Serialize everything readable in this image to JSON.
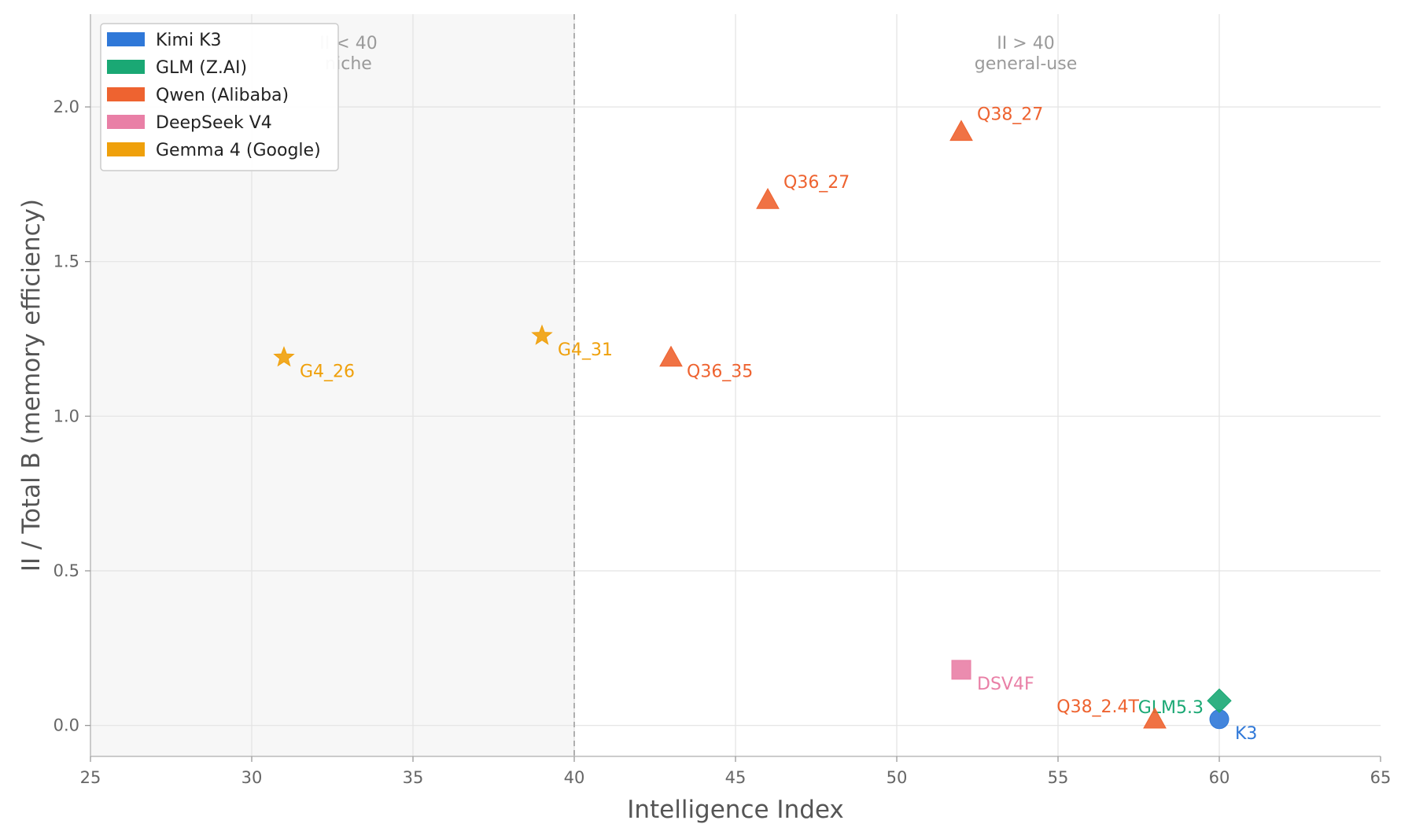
{
  "chart_data": {
    "type": "scatter",
    "xlabel": "Intelligence Index",
    "ylabel": "II / Total B (memory efficiency)",
    "xlim": [
      25,
      65
    ],
    "ylim": [
      -0.1,
      2.3
    ],
    "xticks": [
      "25",
      "30",
      "35",
      "40",
      "45",
      "50",
      "55",
      "60",
      "65"
    ],
    "yticks": [
      "0.0",
      "0.5",
      "1.0",
      "1.5",
      "2.0"
    ],
    "grid": true,
    "threshold_x": 40,
    "shaded_region": [
      25,
      40
    ],
    "region_labels": [
      {
        "x": 33,
        "line1": "II < 40",
        "line2": "niche"
      },
      {
        "x": 54,
        "line1": "II > 40",
        "line2": "general-use"
      }
    ],
    "legend_position": "top-left",
    "legend": [
      {
        "name": "Kimi K3",
        "color": "#2f78d8"
      },
      {
        "name": "GLM (Z.AI)",
        "color": "#1aa874"
      },
      {
        "name": "Qwen (Alibaba)",
        "color": "#ee6330"
      },
      {
        "name": "DeepSeek V4",
        "color": "#e97fa6"
      },
      {
        "name": "Gemma 4 (Google)",
        "color": "#efa00b"
      }
    ],
    "points": [
      {
        "label": "K3",
        "x": 60,
        "y": 0.02,
        "marker": "circle",
        "color": "#2f78d8",
        "label_pos": "below-right"
      },
      {
        "label": "GLM5.3",
        "x": 60,
        "y": 0.08,
        "marker": "diamond",
        "color": "#1aa874",
        "label_pos": "left"
      },
      {
        "label": "Q38_27",
        "x": 52,
        "y": 1.92,
        "marker": "triangle",
        "color": "#ee6330",
        "label_pos": "above-right"
      },
      {
        "label": "Q36_27",
        "x": 46,
        "y": 1.7,
        "marker": "triangle",
        "color": "#ee6330",
        "label_pos": "above-right"
      },
      {
        "label": "Q36_35",
        "x": 43,
        "y": 1.19,
        "marker": "triangle",
        "color": "#ee6330",
        "label_pos": "below-right"
      },
      {
        "label": "Q38_2.4T",
        "x": 58,
        "y": 0.02,
        "marker": "triangle",
        "color": "#ee6330",
        "label_pos": "above-left"
      },
      {
        "label": "DSV4F",
        "x": 52,
        "y": 0.18,
        "marker": "square",
        "color": "#e97fa6",
        "label_pos": "below-right"
      },
      {
        "label": "G4_31",
        "x": 39,
        "y": 1.26,
        "marker": "star",
        "color": "#efa00b",
        "label_pos": "below-right"
      },
      {
        "label": "G4_26",
        "x": 31,
        "y": 1.19,
        "marker": "star",
        "color": "#efa00b",
        "label_pos": "below-right"
      }
    ]
  }
}
